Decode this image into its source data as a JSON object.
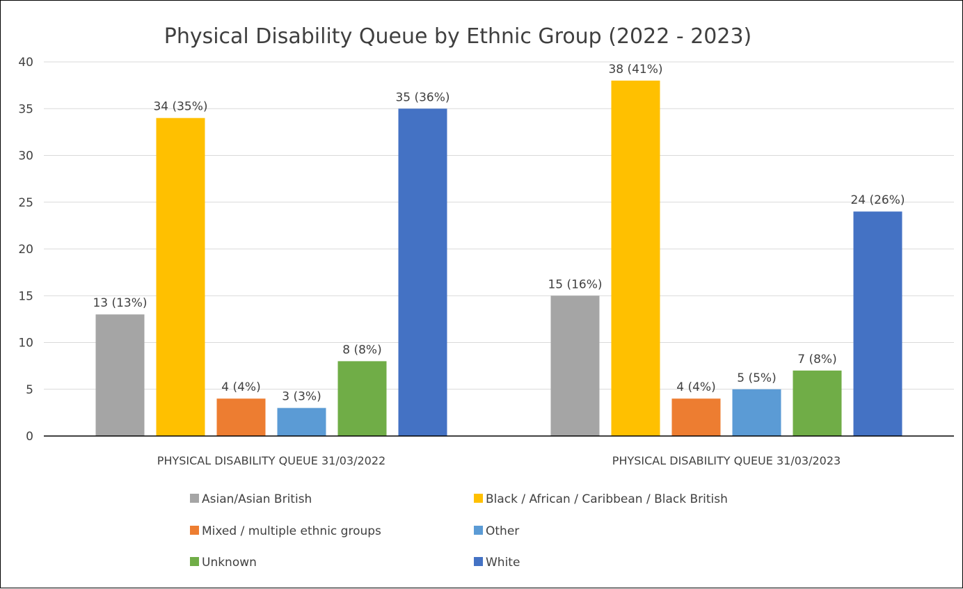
{
  "chart_data": {
    "type": "bar",
    "title": "Physical Disability Queue by Ethnic Group (2022 - 2023)",
    "xlabel": "",
    "ylabel": "",
    "ylim": [
      0,
      40
    ],
    "yticks": [
      0,
      5,
      10,
      15,
      20,
      25,
      30,
      35,
      40
    ],
    "grid": true,
    "legend_position": "bottom",
    "categories": [
      "PHYSICAL DISABILITY QUEUE 31/03/2022",
      "PHYSICAL DISABILITY QUEUE 31/03/2023"
    ],
    "series": [
      {
        "name": "Asian/Asian British",
        "color": "#a5a5a5",
        "values": [
          13,
          15
        ],
        "labels": [
          "13 (13%)",
          "15 (16%)"
        ]
      },
      {
        "name": "Black / African / Caribbean / Black British",
        "color": "#ffc000",
        "values": [
          34,
          38
        ],
        "labels": [
          "34 (35%)",
          "38 (41%)"
        ]
      },
      {
        "name": "Mixed / multiple ethnic groups",
        "color": "#ed7d31",
        "values": [
          4,
          4
        ],
        "labels": [
          "4 (4%)",
          "4 (4%)"
        ]
      },
      {
        "name": "Other",
        "color": "#5b9bd5",
        "values": [
          3,
          5
        ],
        "labels": [
          "3 (3%)",
          "5 (5%)"
        ]
      },
      {
        "name": "Unknown",
        "color": "#70ad47",
        "values": [
          8,
          7
        ],
        "labels": [
          "8 (8%)",
          "7 (8%)"
        ]
      },
      {
        "name": "White",
        "color": "#4472c4",
        "values": [
          35,
          24
        ],
        "labels": [
          "35 (36%)",
          "24 (26%)"
        ]
      }
    ]
  }
}
